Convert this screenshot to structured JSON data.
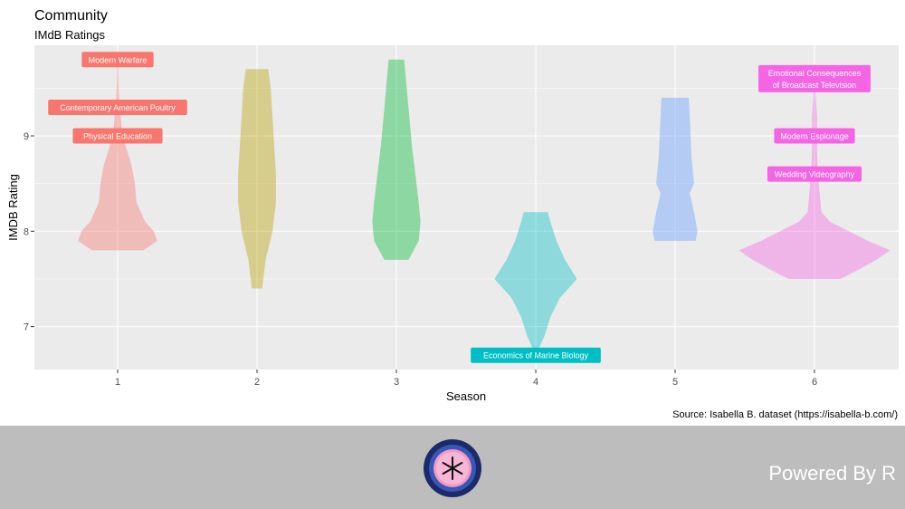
{
  "chart_data": {
    "type": "violin",
    "title": "Community",
    "subtitle": "IMdB Ratings",
    "xlabel": "Season",
    "ylabel": "IMDB Rating",
    "caption": "Source: Isabella B. dataset (https://isabella-b.com/)",
    "categories": [
      "1",
      "2",
      "3",
      "4",
      "5",
      "6"
    ],
    "ylim": [
      6.55,
      9.95
    ],
    "yticks": [
      7,
      8,
      9
    ],
    "grid": true,
    "legend": "none",
    "series": [
      {
        "category": "1",
        "color": "#F8766D",
        "profile": [
          [
            7.8,
            0.3
          ],
          [
            7.9,
            0.46
          ],
          [
            8.0,
            0.42
          ],
          [
            8.1,
            0.32
          ],
          [
            8.3,
            0.22
          ],
          [
            8.5,
            0.2
          ],
          [
            8.7,
            0.16
          ],
          [
            8.9,
            0.09
          ],
          [
            9.1,
            0.045
          ],
          [
            9.3,
            0.025
          ],
          [
            9.5,
            0.012
          ],
          [
            9.7,
            0.005
          ],
          [
            9.8,
            0.0
          ]
        ]
      },
      {
        "category": "2",
        "color": "#B79F00",
        "profile": [
          [
            7.4,
            0.06
          ],
          [
            7.7,
            0.1
          ],
          [
            8.0,
            0.18
          ],
          [
            8.3,
            0.22
          ],
          [
            8.6,
            0.22
          ],
          [
            8.9,
            0.2
          ],
          [
            9.2,
            0.18
          ],
          [
            9.5,
            0.16
          ],
          [
            9.7,
            0.13
          ]
        ]
      },
      {
        "category": "3",
        "color": "#00BA38",
        "profile": [
          [
            7.7,
            0.14
          ],
          [
            7.9,
            0.26
          ],
          [
            8.1,
            0.28
          ],
          [
            8.3,
            0.26
          ],
          [
            8.6,
            0.22
          ],
          [
            8.9,
            0.18
          ],
          [
            9.2,
            0.15
          ],
          [
            9.5,
            0.12
          ],
          [
            9.8,
            0.09
          ]
        ]
      },
      {
        "category": "4",
        "color": "#00BFC4",
        "profile": [
          [
            6.7,
            0.0
          ],
          [
            6.8,
            0.05
          ],
          [
            6.9,
            0.1
          ],
          [
            7.1,
            0.17
          ],
          [
            7.3,
            0.28
          ],
          [
            7.5,
            0.48
          ],
          [
            7.7,
            0.34
          ],
          [
            7.9,
            0.24
          ],
          [
            8.1,
            0.17
          ],
          [
            8.2,
            0.14
          ]
        ]
      },
      {
        "category": "5",
        "color": "#619CFF",
        "profile": [
          [
            7.9,
            0.24
          ],
          [
            8.0,
            0.26
          ],
          [
            8.2,
            0.22
          ],
          [
            8.4,
            0.17
          ],
          [
            8.5,
            0.22
          ],
          [
            8.8,
            0.19
          ],
          [
            9.0,
            0.18
          ],
          [
            9.2,
            0.17
          ],
          [
            9.4,
            0.16
          ]
        ]
      },
      {
        "category": "6",
        "color": "#F564E3",
        "profile": [
          [
            7.5,
            0.3
          ],
          [
            7.6,
            0.52
          ],
          [
            7.7,
            0.72
          ],
          [
            7.8,
            0.88
          ],
          [
            7.9,
            0.62
          ],
          [
            8.0,
            0.4
          ],
          [
            8.1,
            0.18
          ],
          [
            8.2,
            0.08
          ],
          [
            8.4,
            0.06
          ],
          [
            8.6,
            0.04
          ],
          [
            8.8,
            0.03
          ],
          [
            9.0,
            0.025
          ],
          [
            9.2,
            0.03
          ],
          [
            9.4,
            0.015
          ],
          [
            9.6,
            0.0
          ]
        ]
      }
    ],
    "annotations": [
      {
        "category": "1",
        "y": 9.8,
        "lines": [
          "Modern Warfare"
        ],
        "color": "#F8766D"
      },
      {
        "category": "1",
        "y": 9.3,
        "lines": [
          "Contemporary American Poultry"
        ],
        "color": "#F8766D"
      },
      {
        "category": "1",
        "y": 9.0,
        "lines": [
          "Physical Education"
        ],
        "color": "#F8766D"
      },
      {
        "category": "4",
        "y": 6.7,
        "lines": [
          "Economics of Marine Biology"
        ],
        "color": "#00BFC4"
      },
      {
        "category": "6",
        "y": 9.6,
        "lines": [
          "Emotional Consequences",
          "of Broadcast Television"
        ],
        "color": "#F564E3"
      },
      {
        "category": "6",
        "y": 9.0,
        "lines": [
          "Modern Espionage"
        ],
        "color": "#F564E3"
      },
      {
        "category": "6",
        "y": 8.6,
        "lines": [
          "Wedding Videography"
        ],
        "color": "#F564E3"
      }
    ]
  },
  "footer": {
    "powered_by": "Powered By R",
    "logo_icon": "community-fan-badge-icon"
  }
}
